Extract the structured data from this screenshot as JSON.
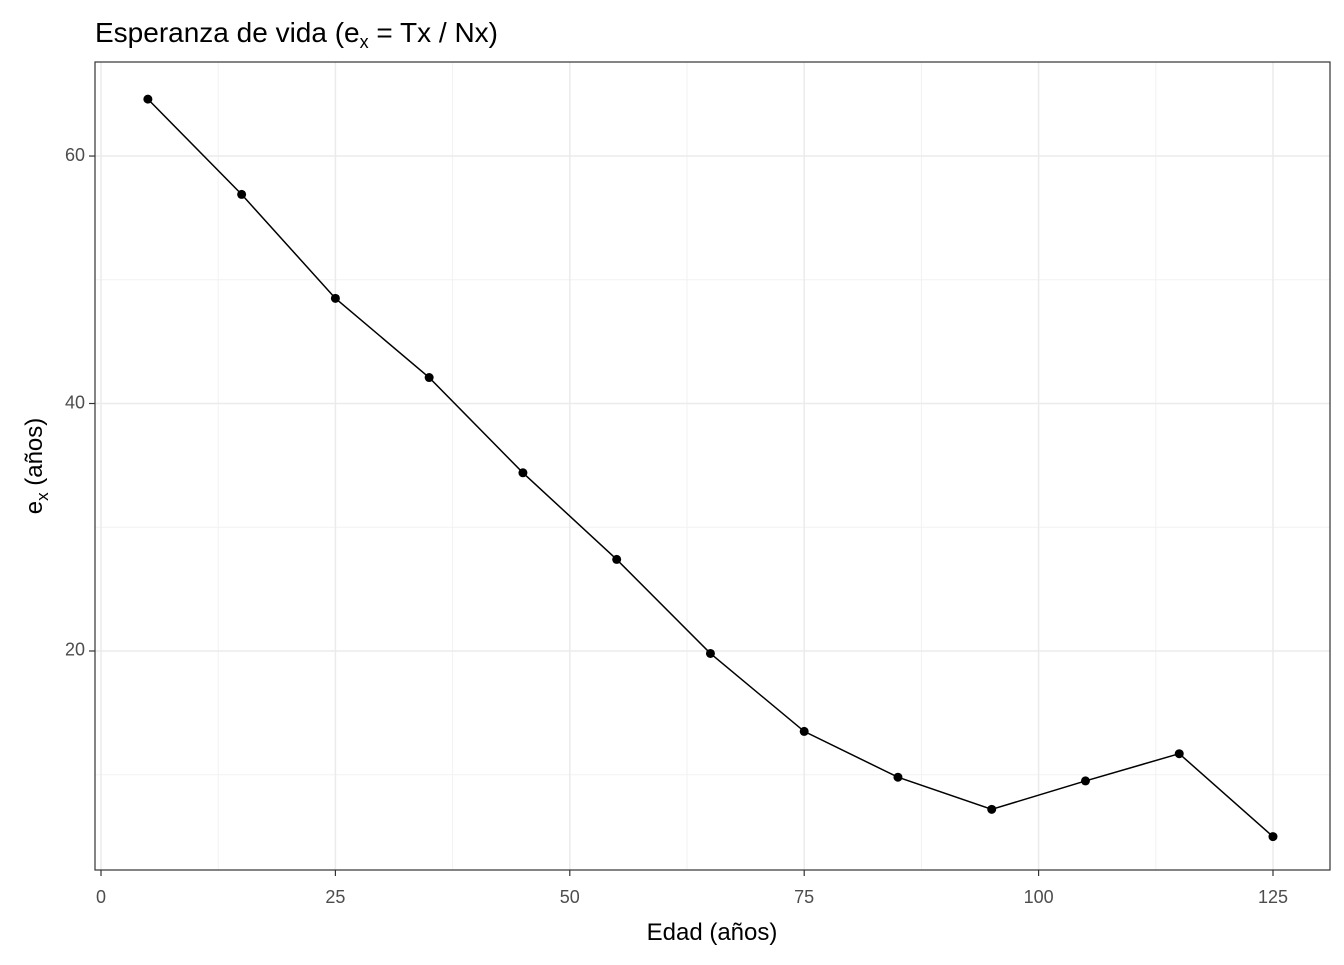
{
  "chart_data": {
    "type": "line",
    "title": [
      "Esperanza de vida (e",
      "x",
      " = Tx / Nx)"
    ],
    "x_label": "Edad (años)",
    "y_label": [
      "e",
      "x",
      " (años)"
    ],
    "x": [
      5,
      15,
      25,
      35,
      45,
      55,
      65,
      75,
      85,
      95,
      105,
      115,
      125
    ],
    "series": [
      {
        "color": "#000000",
        "values": [
          64.6,
          56.9,
          48.5,
          42.1,
          34.4,
          27.4,
          19.8,
          13.5,
          9.8,
          7.2,
          9.5,
          11.7,
          5.0
        ]
      }
    ],
    "xlim": [
      -0.64,
      131.08
    ],
    "ylim": [
      2.3,
      67.6
    ],
    "xticks": [
      0,
      25,
      50,
      75,
      100,
      125
    ],
    "yticks": [
      20,
      40,
      60
    ],
    "xminor": [
      12.5,
      37.5,
      62.5,
      87.5,
      112.5
    ],
    "yminor": [
      10,
      30,
      50
    ],
    "grid": true
  }
}
